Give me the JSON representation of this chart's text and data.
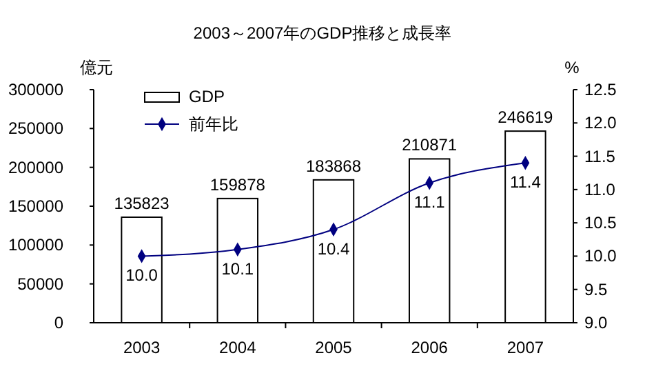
{
  "chart_data": {
    "type": "bar",
    "title": "2003～2007年のGDP推移と成長率",
    "ylabel": "億元",
    "y2label": "%",
    "categories": [
      "2003",
      "2004",
      "2005",
      "2006",
      "2007"
    ],
    "series": [
      {
        "name": "GDP",
        "color": "#ffffff",
        "values": [
          135823,
          159878,
          183868,
          210871,
          246619
        ],
        "value_labels": [
          "135823",
          "159878",
          "183868",
          "210871",
          "246619"
        ]
      },
      {
        "name": "前年比",
        "type": "line",
        "axis": "y2",
        "color": "#000080",
        "values": [
          10.0,
          10.1,
          10.4,
          11.1,
          11.4
        ],
        "value_labels": [
          "10.0",
          "10.1",
          "10.4",
          "11.1",
          "11.4"
        ]
      }
    ],
    "ylim": [
      0,
      300000
    ],
    "yticks": [
      0,
      50000,
      100000,
      150000,
      200000,
      250000,
      300000
    ],
    "y2lim": [
      9,
      12.5
    ],
    "y2ticks": [
      {
        "value": 9,
        "label": "9.0"
      },
      {
        "value": 9.5,
        "label": "9.5"
      },
      {
        "value": 10,
        "label": "10.0"
      },
      {
        "value": 10.5,
        "label": "10.5"
      },
      {
        "value": 11,
        "label": "11.0"
      },
      {
        "value": 11.5,
        "label": "11.5"
      },
      {
        "value": 12,
        "label": "12.0"
      },
      {
        "value": 12.5,
        "label": "12.5"
      }
    ],
    "legend": "top left",
    "marker": "diamond",
    "grid": false
  }
}
